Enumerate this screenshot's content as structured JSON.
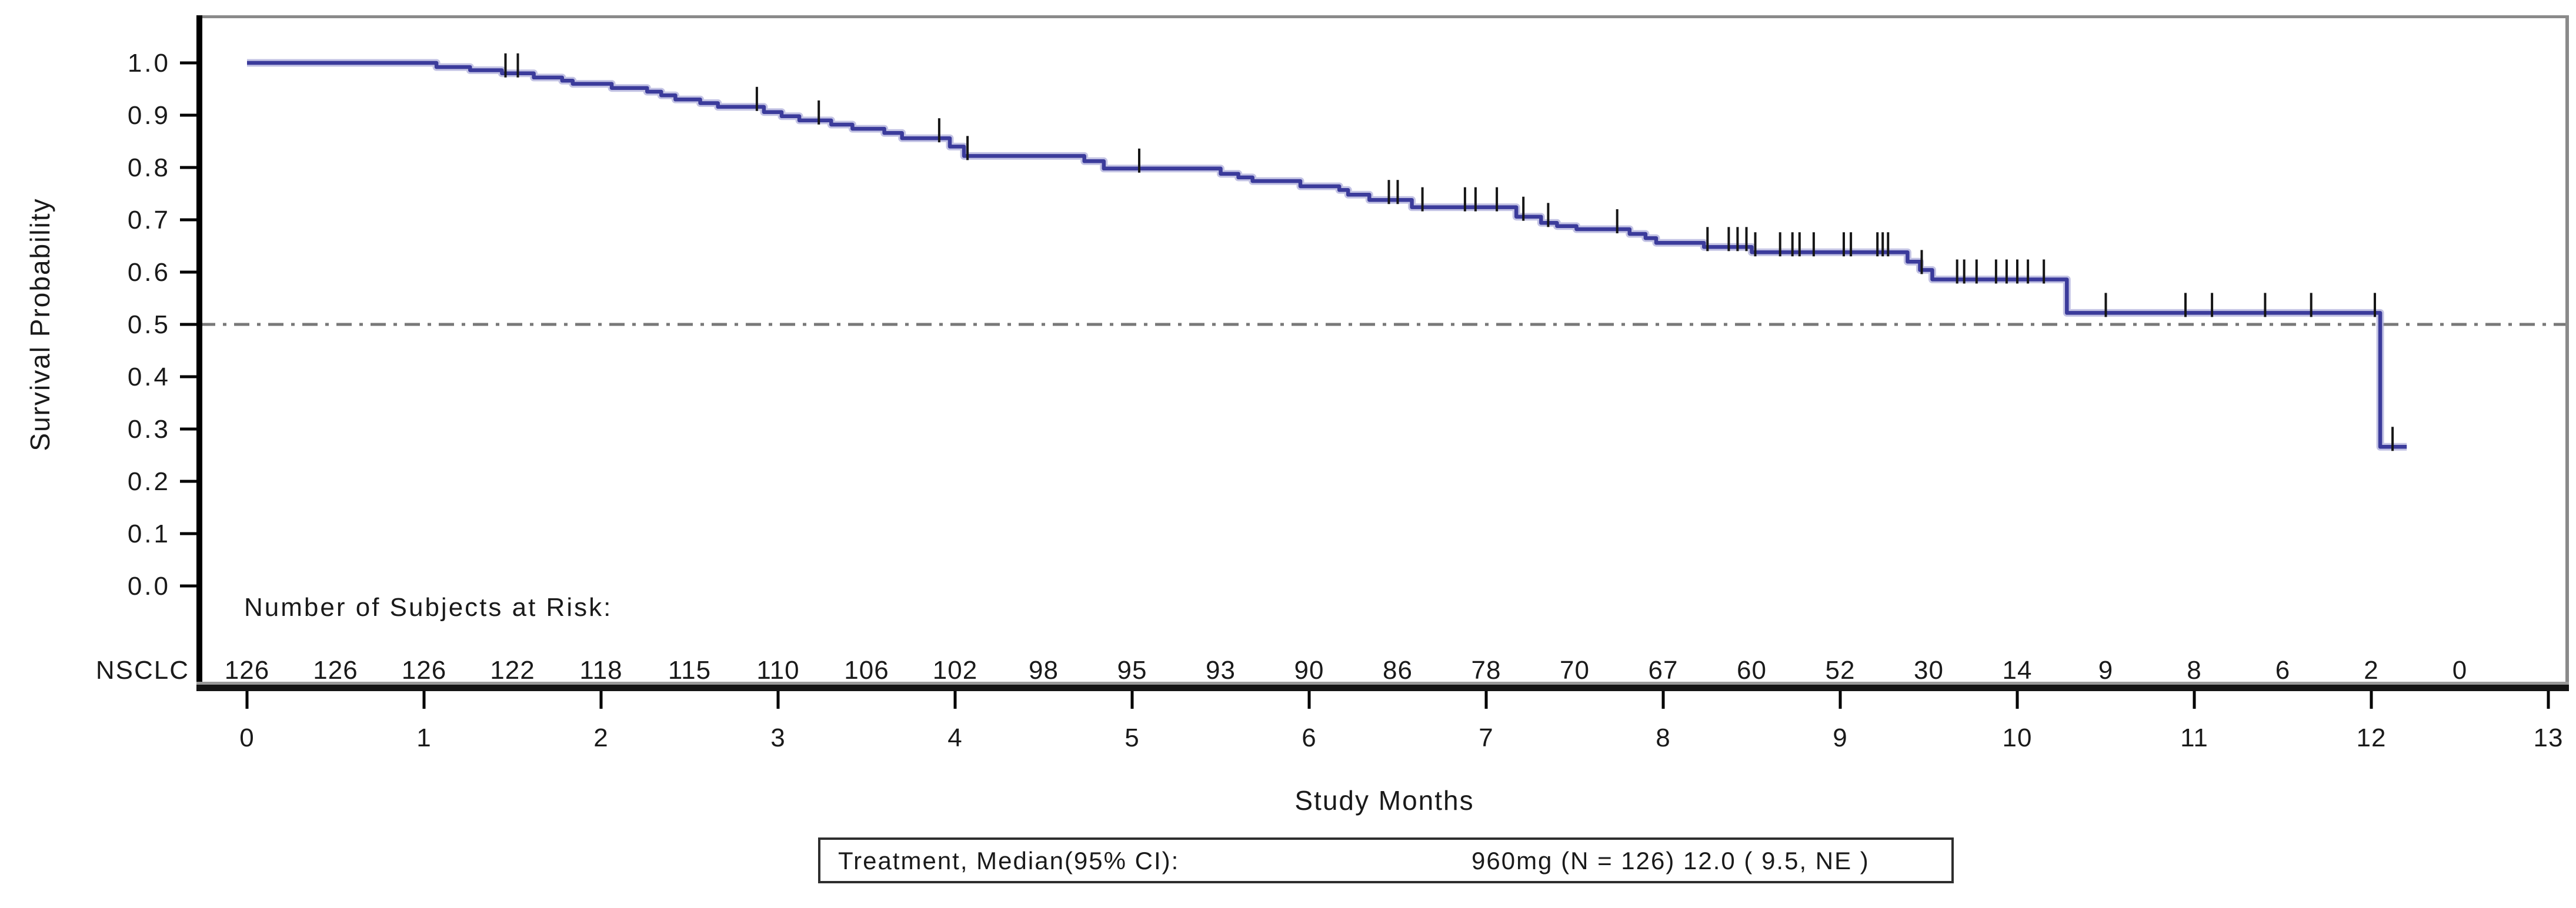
{
  "page": {
    "background": "#ffffff"
  },
  "chart_data": {
    "type": "line",
    "subtype": "kaplan-meier-step-curve",
    "title": "",
    "xlabel": "Study Months",
    "ylabel": "Survival Probability",
    "xlim": [
      0,
      13
    ],
    "ylim": [
      0.0,
      1.0
    ],
    "x_ticks": [
      0,
      1,
      2,
      3,
      4,
      5,
      6,
      7,
      8,
      9,
      10,
      11,
      12,
      13
    ],
    "y_ticks": [
      1.0,
      0.9,
      0.8,
      0.7,
      0.6,
      0.5,
      0.4,
      0.3,
      0.2,
      0.1,
      0.0
    ],
    "grid": false,
    "reference_line": {
      "y": 0.5,
      "style": "dash-dot",
      "color": "#787878"
    },
    "axis_color": "#000000",
    "frame_color": "#8a8a8a",
    "series": [
      {
        "name": "960mg (N = 126)",
        "color": "#3b3b9b",
        "halo_color": "#a3a3d6",
        "censor_color": "#161616",
        "start": [
          0,
          1.0
        ],
        "end_time": 12.2,
        "steps": [
          [
            1.07,
            0.992
          ],
          [
            1.26,
            0.986
          ],
          [
            1.44,
            0.98
          ],
          [
            1.62,
            0.972
          ],
          [
            1.78,
            0.966
          ],
          [
            1.84,
            0.96
          ],
          [
            2.06,
            0.952
          ],
          [
            2.26,
            0.945
          ],
          [
            2.34,
            0.938
          ],
          [
            2.42,
            0.93
          ],
          [
            2.56,
            0.923
          ],
          [
            2.66,
            0.916
          ],
          [
            2.92,
            0.906
          ],
          [
            3.02,
            0.898
          ],
          [
            3.12,
            0.89
          ],
          [
            3.3,
            0.882
          ],
          [
            3.42,
            0.874
          ],
          [
            3.6,
            0.866
          ],
          [
            3.7,
            0.856
          ],
          [
            3.97,
            0.84
          ],
          [
            4.05,
            0.822
          ],
          [
            4.73,
            0.812
          ],
          [
            4.84,
            0.798
          ],
          [
            5.5,
            0.788
          ],
          [
            5.6,
            0.781
          ],
          [
            5.68,
            0.774
          ],
          [
            5.95,
            0.764
          ],
          [
            6.17,
            0.757
          ],
          [
            6.22,
            0.748
          ],
          [
            6.34,
            0.738
          ],
          [
            6.58,
            0.724
          ],
          [
            7.17,
            0.706
          ],
          [
            7.31,
            0.694
          ],
          [
            7.4,
            0.688
          ],
          [
            7.51,
            0.682
          ],
          [
            7.81,
            0.673
          ],
          [
            7.9,
            0.665
          ],
          [
            7.96,
            0.656
          ],
          [
            8.23,
            0.648
          ],
          [
            8.5,
            0.638
          ],
          [
            9.38,
            0.62
          ],
          [
            9.45,
            0.604
          ],
          [
            9.52,
            0.586
          ],
          [
            10.28,
            0.522
          ],
          [
            12.05,
            0.266
          ]
        ],
        "censor_times": [
          1.46,
          1.53,
          2.88,
          3.23,
          3.91,
          4.07,
          5.04,
          6.45,
          6.5,
          6.64,
          6.88,
          6.94,
          7.06,
          7.21,
          7.35,
          7.74,
          8.25,
          8.37,
          8.42,
          8.47,
          8.52,
          8.66,
          8.73,
          8.77,
          8.85,
          9.02,
          9.06,
          9.21,
          9.24,
          9.27,
          9.46,
          9.66,
          9.7,
          9.77,
          9.88,
          9.94,
          10.0,
          10.06,
          10.15,
          10.5,
          10.95,
          11.1,
          11.4,
          11.66,
          12.02,
          12.12
        ]
      }
    ],
    "at_risk": {
      "header": "Number of Subjects at Risk:",
      "label": "NSCLC",
      "number_color": "#5252a8",
      "times": [
        0,
        0.5,
        1,
        1.5,
        2,
        2.5,
        3,
        3.5,
        4,
        4.5,
        5,
        5.5,
        6,
        6.5,
        7,
        7.5,
        8,
        8.5,
        9,
        9.5,
        10,
        10.5,
        11,
        11.5,
        12,
        12.5
      ],
      "counts": [
        126,
        126,
        126,
        122,
        118,
        115,
        110,
        106,
        102,
        98,
        95,
        93,
        90,
        86,
        78,
        70,
        67,
        60,
        52,
        30,
        14,
        9,
        8,
        6,
        2,
        0
      ]
    },
    "legend": {
      "position": "bottom-center",
      "prefix": "Treatment, Median(95% CI):",
      "entry": "960mg (N = 126) 12.0 ( 9.5, NE )"
    }
  }
}
